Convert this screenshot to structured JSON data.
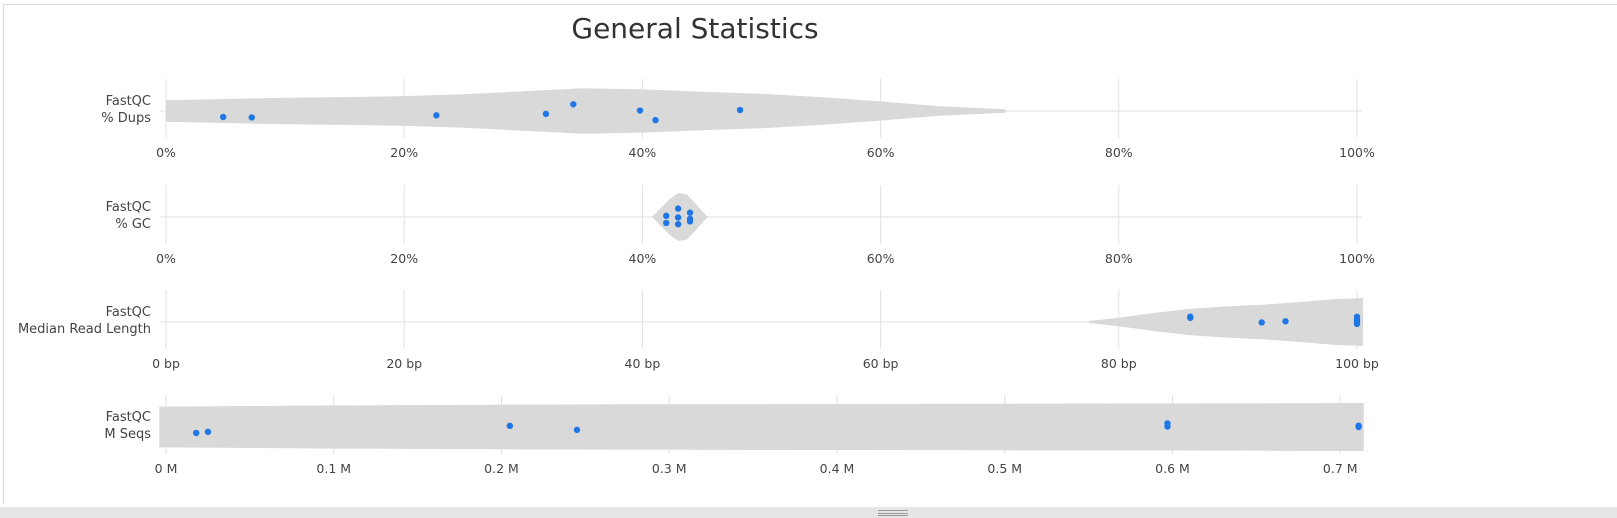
{
  "title": "General Statistics",
  "colors": {
    "violin": "#d9d9d9",
    "point": "#1f77e6",
    "grid": "#e2e2e2",
    "text": "#444444"
  },
  "chart_data": [
    {
      "type": "violin",
      "label": [
        "FastQC",
        "% Dups"
      ],
      "xlim": [
        0,
        100
      ],
      "ticks": [
        0,
        20,
        40,
        60,
        80,
        100
      ],
      "tick_labels": [
        "0%",
        "20%",
        "40%",
        "60%",
        "80%",
        "100%"
      ],
      "violin_range": [
        0,
        70.5
      ],
      "density": [
        [
          0,
          0.45
        ],
        [
          5,
          0.5
        ],
        [
          10,
          0.55
        ],
        [
          15,
          0.58
        ],
        [
          20,
          0.62
        ],
        [
          25,
          0.7
        ],
        [
          30,
          0.82
        ],
        [
          35,
          0.95
        ],
        [
          40,
          0.9
        ],
        [
          45,
          0.8
        ],
        [
          50,
          0.72
        ],
        [
          55,
          0.58
        ],
        [
          60,
          0.4
        ],
        [
          65,
          0.2
        ],
        [
          70.5,
          0.07
        ]
      ],
      "points": [
        [
          4.8,
          -0.25
        ],
        [
          7.2,
          -0.27
        ],
        [
          22.7,
          -0.18
        ],
        [
          31.9,
          -0.12
        ],
        [
          34.2,
          0.28
        ],
        [
          39.8,
          0.02
        ],
        [
          41.1,
          -0.38
        ],
        [
          48.2,
          0.04
        ]
      ]
    },
    {
      "type": "violin",
      "label": [
        "FastQC",
        "% GC"
      ],
      "xlim": [
        0,
        100
      ],
      "ticks": [
        0,
        20,
        40,
        60,
        80,
        100
      ],
      "tick_labels": [
        "0%",
        "20%",
        "40%",
        "60%",
        "80%",
        "100%"
      ],
      "violin_range": [
        40.8,
        45.5
      ],
      "density": [
        [
          40.8,
          0
        ],
        [
          41.5,
          0.35
        ],
        [
          42.3,
          0.75
        ],
        [
          43,
          1
        ],
        [
          43.7,
          0.95
        ],
        [
          44.4,
          0.6
        ],
        [
          45,
          0.25
        ],
        [
          45.5,
          0
        ]
      ],
      "points": [
        [
          42,
          0.05
        ],
        [
          42,
          -0.25
        ],
        [
          43,
          0.35
        ],
        [
          43,
          -0.02
        ],
        [
          43,
          -0.3
        ],
        [
          44,
          0.18
        ],
        [
          44,
          -0.08
        ],
        [
          44,
          -0.18
        ]
      ]
    },
    {
      "type": "violin",
      "label": [
        "FastQC",
        "Median Read Length"
      ],
      "xlim": [
        0,
        100
      ],
      "ticks": [
        0,
        20,
        40,
        60,
        80,
        100
      ],
      "tick_labels": [
        "0 bp",
        "20 bp",
        "40 bp",
        "60 bp",
        "80 bp",
        "100 bp"
      ],
      "violin_range": [
        77.5,
        100.5
      ],
      "density": [
        [
          77.5,
          0.04
        ],
        [
          80,
          0.18
        ],
        [
          83,
          0.38
        ],
        [
          86,
          0.55
        ],
        [
          89,
          0.65
        ],
        [
          92,
          0.72
        ],
        [
          95,
          0.82
        ],
        [
          98,
          0.95
        ],
        [
          100.5,
          1
        ]
      ],
      "points": [
        [
          86,
          0.22
        ],
        [
          86,
          0.17
        ],
        [
          92,
          -0.02
        ],
        [
          94,
          0.03
        ],
        [
          100,
          0.22
        ],
        [
          100,
          0.1
        ],
        [
          100,
          0.0
        ],
        [
          100,
          -0.08
        ]
      ]
    },
    {
      "type": "violin",
      "label": [
        "FastQC",
        "M Seqs"
      ],
      "xlim": [
        0,
        0.71
      ],
      "ticks": [
        0,
        0.1,
        0.2,
        0.3,
        0.4,
        0.5,
        0.6,
        0.7
      ],
      "tick_labels": [
        "0 M",
        "0.1 M",
        "0.2 M",
        "0.3 M",
        "0.4 M",
        "0.5 M",
        "0.6 M",
        "0.7 M"
      ],
      "violin_range": [
        -0.004,
        0.714
      ],
      "density": [
        [
          -0.004,
          0.85
        ],
        [
          0.1,
          0.9
        ],
        [
          0.2,
          0.93
        ],
        [
          0.3,
          0.95
        ],
        [
          0.4,
          0.96
        ],
        [
          0.5,
          0.97
        ],
        [
          0.6,
          0.98
        ],
        [
          0.714,
          1
        ]
      ],
      "points": [
        [
          0.018,
          -0.25
        ],
        [
          0.025,
          -0.2
        ],
        [
          0.205,
          0.05
        ],
        [
          0.245,
          -0.12
        ],
        [
          0.597,
          0.15
        ],
        [
          0.597,
          0.02
        ],
        [
          0.711,
          0.05
        ],
        [
          0.711,
          0.0
        ]
      ]
    }
  ]
}
